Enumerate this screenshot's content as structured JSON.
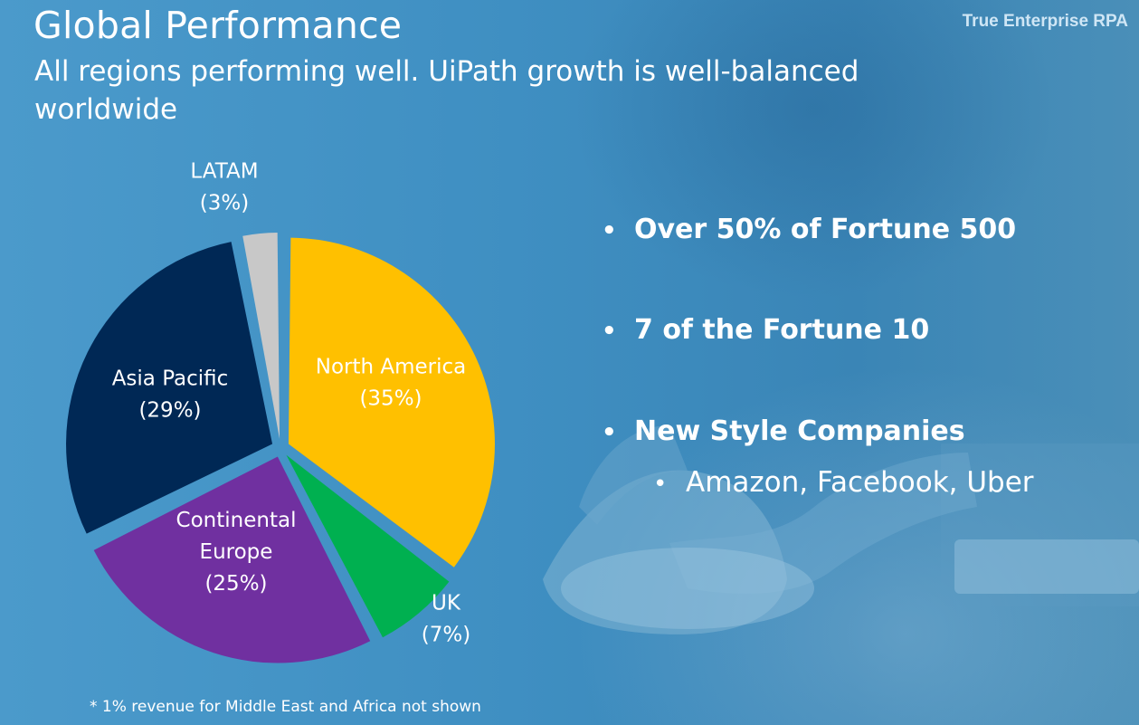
{
  "header": {
    "title": "Global Performance",
    "subtitle": "All regions performing well. UiPath growth is well-balanced worldwide",
    "brand": "True Enterprise RPA"
  },
  "bullets": [
    {
      "text": "Over 50% of Fortune 500"
    },
    {
      "text": "7 of the Fortune 10"
    },
    {
      "text": "New Style Companies",
      "sub": "Amazon, Facebook, Uber"
    }
  ],
  "footnote": "* 1% revenue for Middle East and Africa not shown",
  "chart_data": {
    "type": "pie",
    "title": "",
    "slices": [
      {
        "label": "North America",
        "percent_label": "(35%)",
        "value": 35,
        "color": "#ffc000"
      },
      {
        "label": "UK",
        "percent_label": "(7%)",
        "value": 7,
        "color": "#00b050"
      },
      {
        "label": "Continental Europe",
        "percent_label": "(25%)",
        "value": 25,
        "color": "#7030a0"
      },
      {
        "label": "Asia Pacific",
        "percent_label": "(29%)",
        "value": 29,
        "color": "#002855"
      },
      {
        "label": "LATAM",
        "percent_label": "(3%)",
        "value": 3,
        "color": "#c8c8c8"
      }
    ],
    "label_color": "#ffffff"
  }
}
